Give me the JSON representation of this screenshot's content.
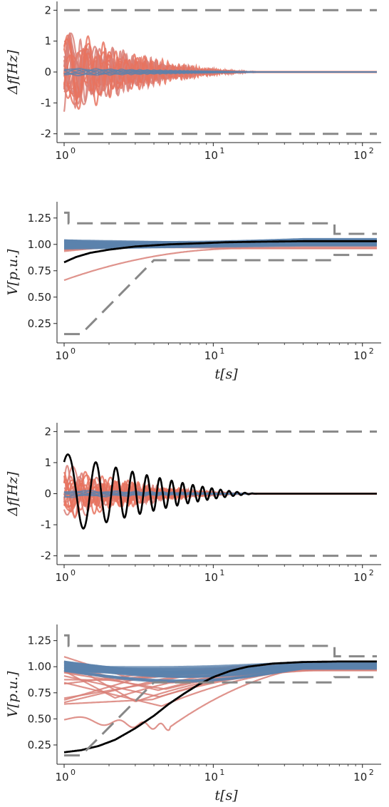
{
  "colors": {
    "unstable": "#e8735f",
    "unstable_soft": "#d98078",
    "stable": "#5b82ad",
    "highlight": "#000000",
    "limit": "#888888",
    "axis": "#222222"
  },
  "chart_data": [
    {
      "type": "line",
      "ylabel": "Δf[Hz]",
      "xlabel": "",
      "xscale": "log",
      "xlim": [
        1,
        125
      ],
      "ylim": [
        -2.1,
        2.1
      ],
      "xticks": [
        "10^0",
        "10^1",
        "10^2"
      ],
      "yticks": [
        -2,
        -1,
        0,
        1,
        2
      ],
      "grid": false,
      "limits": [
        {
          "name": "upper",
          "x": [
            1,
            125
          ],
          "y": [
            2,
            2
          ]
        },
        {
          "name": "lower",
          "x": [
            1,
            125
          ],
          "y": [
            -2,
            -2
          ]
        }
      ],
      "highlight": null
    },
    {
      "type": "line",
      "ylabel": "V[p.u.]",
      "xlabel": "t[s]",
      "xscale": "log",
      "xlim": [
        1,
        125
      ],
      "ylim": [
        0.12,
        1.35
      ],
      "xticks": [
        "10^0",
        "10^1",
        "10^2"
      ],
      "yticks": [
        0.25,
        0.5,
        0.75,
        1.0,
        1.25
      ],
      "grid": false,
      "limits": [
        {
          "name": "upper",
          "x": [
            1,
            1.07,
            1.07,
            65,
            65,
            125
          ],
          "y": [
            1.3,
            1.3,
            1.2,
            1.2,
            1.1,
            1.1
          ]
        },
        {
          "name": "lower",
          "x": [
            1,
            1.3,
            4,
            4,
            65,
            65,
            125
          ],
          "y": [
            0.15,
            0.15,
            0.85,
            0.85,
            0.85,
            0.9,
            0.9
          ]
        }
      ],
      "highlight": {
        "name": "highlighted trajectory",
        "x": [
          1,
          1.2,
          1.5,
          2,
          3,
          5,
          8,
          12,
          20,
          40,
          80,
          125
        ],
        "y": [
          0.83,
          0.88,
          0.92,
          0.95,
          0.98,
          1.0,
          1.01,
          1.02,
          1.025,
          1.03,
          1.03,
          1.03
        ]
      }
    },
    {
      "type": "line",
      "ylabel": "Δf[Hz]",
      "xlabel": "",
      "xscale": "log",
      "xlim": [
        1,
        125
      ],
      "ylim": [
        -2.1,
        2.1
      ],
      "xticks": [
        "10^0",
        "10^1",
        "10^2"
      ],
      "yticks": [
        -2,
        -1,
        0,
        1,
        2
      ],
      "grid": false,
      "limits": [
        {
          "name": "upper",
          "x": [
            1,
            125
          ],
          "y": [
            2,
            2
          ]
        },
        {
          "name": "lower",
          "x": [
            1,
            125
          ],
          "y": [
            -2,
            -2
          ]
        }
      ],
      "highlight": {
        "name": "highlighted trajectory",
        "amplitude": 1.3,
        "decay_end_s": 20,
        "period_ratio": 1.38
      }
    },
    {
      "type": "line",
      "ylabel": "V[p.u.]",
      "xlabel": "t[s]",
      "xscale": "log",
      "xlim": [
        1,
        125
      ],
      "ylim": [
        0.12,
        1.35
      ],
      "xticks": [
        "10^0",
        "10^1",
        "10^2"
      ],
      "yticks": [
        0.25,
        0.5,
        0.75,
        1.0,
        1.25
      ],
      "grid": false,
      "limits": [
        {
          "name": "upper",
          "x": [
            1,
            1.07,
            1.07,
            65,
            65,
            125
          ],
          "y": [
            1.3,
            1.3,
            1.2,
            1.2,
            1.1,
            1.1
          ]
        },
        {
          "name": "lower",
          "x": [
            1,
            1.3,
            4,
            4,
            65,
            65,
            125
          ],
          "y": [
            0.15,
            0.15,
            0.85,
            0.85,
            0.85,
            0.9,
            0.9
          ]
        }
      ],
      "highlight": {
        "name": "highlighted trajectory",
        "x": [
          1,
          1.3,
          1.7,
          2.2,
          3,
          4,
          5,
          6.5,
          8,
          10,
          13,
          17,
          25,
          40,
          70,
          125
        ],
        "y": [
          0.18,
          0.2,
          0.24,
          0.3,
          0.41,
          0.53,
          0.64,
          0.75,
          0.83,
          0.9,
          0.96,
          1.0,
          1.03,
          1.045,
          1.05,
          1.05
        ]
      }
    }
  ]
}
